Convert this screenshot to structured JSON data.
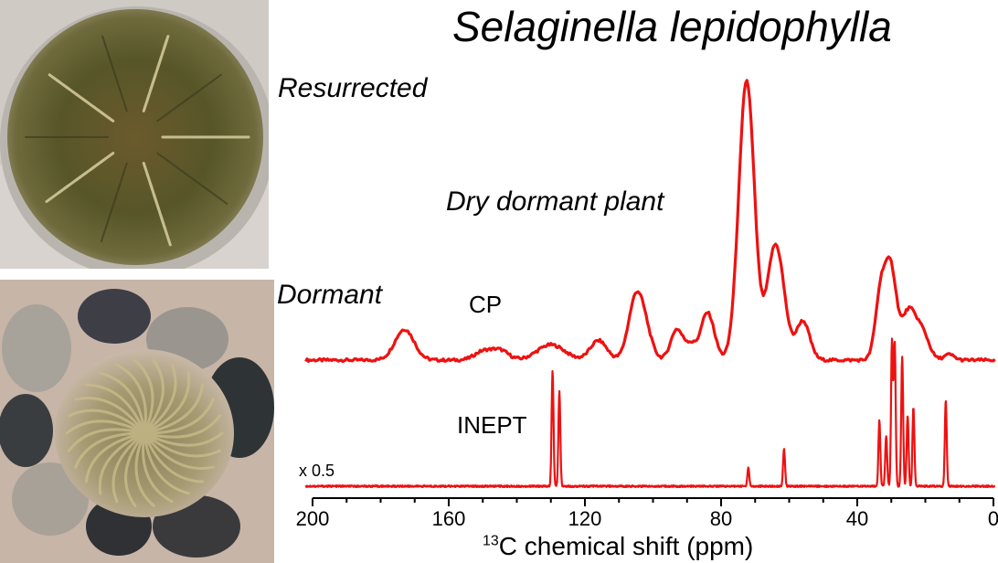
{
  "title": "Selaginella lepidophylla",
  "labels": {
    "resurrected": "Resurrected",
    "dormant": "Dormant",
    "sample": "Dry dormant plant",
    "cp": "CP",
    "inept": "INEPT",
    "inept_scale": "x 0.5"
  },
  "colors": {
    "spectrum": "#ee1111",
    "axis": "#000000"
  },
  "photos": [
    {
      "subject": "resurrected-plant-photo"
    },
    {
      "subject": "dormant-plant-photo"
    }
  ],
  "chart_data": {
    "type": "line",
    "title": "Selaginella lepidophylla",
    "xlabel_sup": "13",
    "xlabel_rest": "C chemical shift (ppm)",
    "xlim": [
      200,
      0
    ],
    "x_reversed": true,
    "xticks": [
      200,
      160,
      120,
      80,
      40,
      0
    ],
    "grid": false,
    "series": [
      {
        "name": "CP",
        "type": "broad",
        "baseline": 0.0,
        "peaks": [
          {
            "x": 173,
            "h": 0.11,
            "w": 2.8
          },
          {
            "x": 150,
            "h": 0.03,
            "w": 2.5
          },
          {
            "x": 145,
            "h": 0.035,
            "w": 2.5
          },
          {
            "x": 130,
            "h": 0.055,
            "w": 4.0
          },
          {
            "x": 116,
            "h": 0.07,
            "w": 2.4
          },
          {
            "x": 105,
            "h": 0.22,
            "w": 2.2
          },
          {
            "x": 102,
            "h": 0.07,
            "w": 2.0
          },
          {
            "x": 93,
            "h": 0.11,
            "w": 1.8
          },
          {
            "x": 89,
            "h": 0.05,
            "w": 1.5
          },
          {
            "x": 84,
            "h": 0.17,
            "w": 2.0
          },
          {
            "x": 72.5,
            "h": 1.0,
            "w": 2.3
          },
          {
            "x": 65,
            "h": 0.28,
            "w": 2.0
          },
          {
            "x": 62.5,
            "h": 0.22,
            "w": 2.0
          },
          {
            "x": 56,
            "h": 0.14,
            "w": 2.0
          },
          {
            "x": 33,
            "h": 0.25,
            "w": 1.6
          },
          {
            "x": 30,
            "h": 0.3,
            "w": 1.6
          },
          {
            "x": 25,
            "h": 0.17,
            "w": 2.0
          },
          {
            "x": 21,
            "h": 0.1,
            "w": 2.0
          },
          {
            "x": 13,
            "h": 0.02,
            "w": 1.5
          }
        ]
      },
      {
        "name": "INEPT",
        "type": "sharp",
        "scale_label": "x 0.5",
        "baseline": 0.0,
        "peaks": [
          {
            "x": 129.5,
            "h": 0.8
          },
          {
            "x": 127.5,
            "h": 0.66
          },
          {
            "x": 72.0,
            "h": 0.13
          },
          {
            "x": 61.5,
            "h": 0.26
          },
          {
            "x": 33.5,
            "h": 0.46
          },
          {
            "x": 31.5,
            "h": 0.35
          },
          {
            "x": 29.8,
            "h": 1.0
          },
          {
            "x": 29.0,
            "h": 1.0
          },
          {
            "x": 26.8,
            "h": 0.9
          },
          {
            "x": 25.2,
            "h": 0.49
          },
          {
            "x": 23.5,
            "h": 0.55
          },
          {
            "x": 14.0,
            "h": 0.6
          }
        ]
      }
    ]
  }
}
